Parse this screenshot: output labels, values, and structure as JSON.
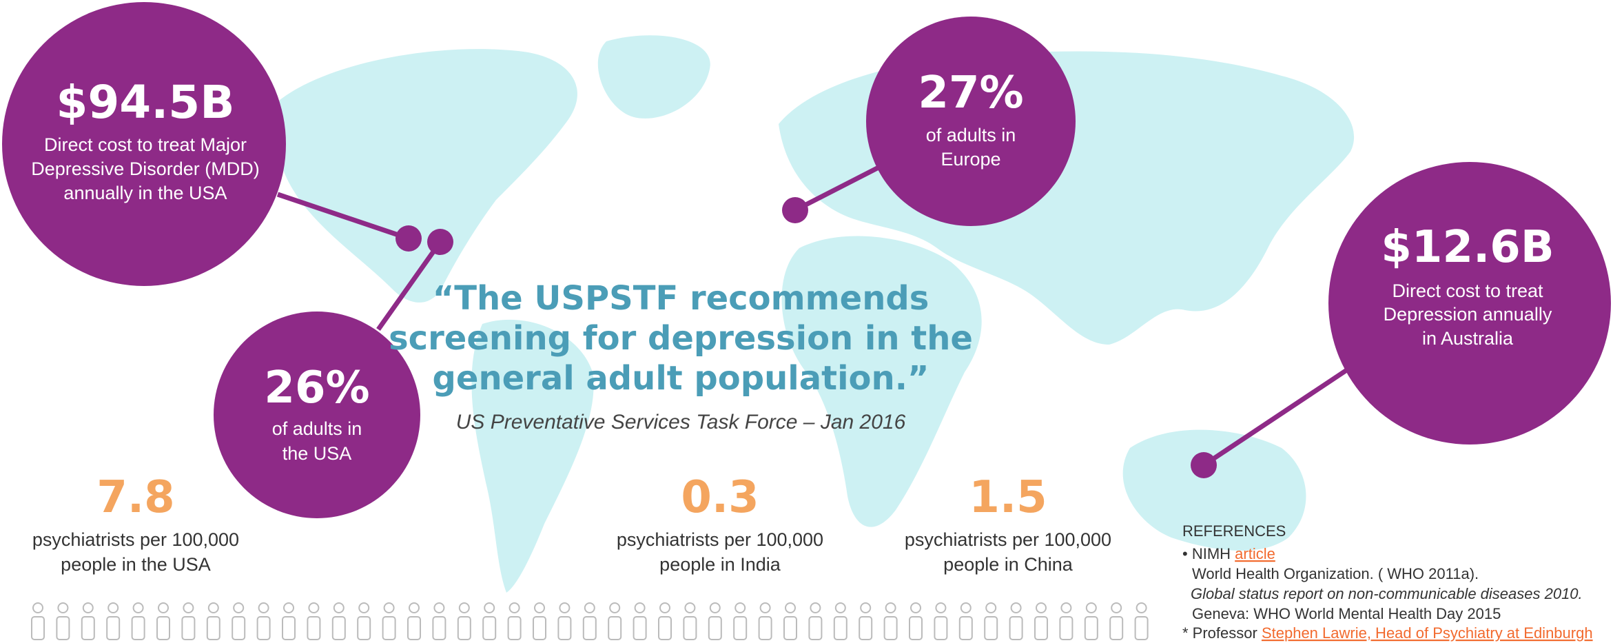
{
  "bubbles": [
    {
      "value": "$94.5B",
      "lines": [
        "Direct cost to treat Major",
        "Depressive Disorder (MDD)",
        "annually in the USA"
      ]
    },
    {
      "value": "26%",
      "lines": [
        "of adults in",
        "the USA"
      ]
    },
    {
      "value": "27%",
      "lines": [
        "of adults in",
        "Europe"
      ]
    },
    {
      "value": "$12.6B",
      "lines": [
        "Direct cost to treat",
        "Depression annually",
        "in Australia"
      ]
    }
  ],
  "quote": {
    "lines": [
      "“The USPSTF recommends",
      "screening for depression in the",
      "general adult population.”"
    ],
    "attribution": "US Preventative Services Task Force – Jan 2016"
  },
  "stats": [
    {
      "value": "7.8",
      "lines": [
        "psychiatrists per 100,000",
        "people in the USA"
      ]
    },
    {
      "value": "0.3",
      "lines": [
        "psychiatrists per 100,000",
        "people in India"
      ]
    },
    {
      "value": "1.5",
      "lines": [
        "psychiatrists per 100,000",
        "people in China"
      ]
    }
  ],
  "references": {
    "heading": "REFERENCES",
    "nimh": {
      "text": "• NIMH",
      "link": "article"
    },
    "who": [
      "World Health Organization. ( WHO 2011a).",
      "Global status report on non-communicable diseases 2010.",
      "Geneva:  WHO World Mental Health Day 2015"
    ],
    "professor": {
      "text": "* Professor",
      "link": "Stephen Lawrie, Head of Psychiatry at Edinburgh"
    }
  }
}
